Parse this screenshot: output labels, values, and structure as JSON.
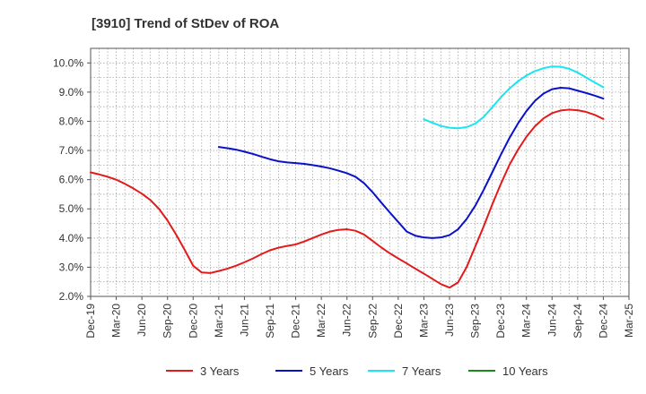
{
  "chart_data": {
    "type": "line",
    "title": "[3910]  Trend of StDev of ROA",
    "xlabel": "",
    "ylabel": "",
    "x_tick_labels": [
      "Dec-19",
      "Mar-20",
      "Jun-20",
      "Sep-20",
      "Dec-20",
      "Mar-21",
      "Jun-21",
      "Sep-21",
      "Dec-21",
      "Mar-22",
      "Jun-22",
      "Sep-22",
      "Dec-22",
      "Mar-23",
      "Jun-23",
      "Sep-23",
      "Dec-23",
      "Mar-24",
      "Jun-24",
      "Sep-24",
      "Dec-24",
      "Mar-25"
    ],
    "y_tick_labels": [
      "2.0%",
      "3.0%",
      "4.0%",
      "5.0%",
      "6.0%",
      "7.0%",
      "8.0%",
      "9.0%",
      "10.0%"
    ],
    "ylim": [
      2.0,
      10.5
    ],
    "grid": true,
    "legend_position": "bottom",
    "series": [
      {
        "name": "3 Years",
        "color": "#e31a1c",
        "points": [
          [
            "Dec-19",
            6.25
          ],
          [
            "Jan-20",
            6.18
          ],
          [
            "Feb-20",
            6.1
          ],
          [
            "Mar-20",
            6.0
          ],
          [
            "Apr-20",
            5.86
          ],
          [
            "May-20",
            5.7
          ],
          [
            "Jun-20",
            5.52
          ],
          [
            "Jul-20",
            5.3
          ],
          [
            "Aug-20",
            5.0
          ],
          [
            "Sep-20",
            4.6
          ],
          [
            "Oct-20",
            4.12
          ],
          [
            "Nov-20",
            3.6
          ],
          [
            "Dec-20",
            3.05
          ],
          [
            "Jan-21",
            2.82
          ],
          [
            "Feb-21",
            2.8
          ],
          [
            "Mar-21",
            2.87
          ],
          [
            "Apr-21",
            2.95
          ],
          [
            "May-21",
            3.05
          ],
          [
            "Jun-21",
            3.17
          ],
          [
            "Jul-21",
            3.3
          ],
          [
            "Aug-21",
            3.45
          ],
          [
            "Sep-21",
            3.58
          ],
          [
            "Oct-21",
            3.67
          ],
          [
            "Nov-21",
            3.73
          ],
          [
            "Dec-21",
            3.78
          ],
          [
            "Jan-22",
            3.88
          ],
          [
            "Feb-22",
            4.0
          ],
          [
            "Mar-22",
            4.12
          ],
          [
            "Apr-22",
            4.22
          ],
          [
            "May-22",
            4.28
          ],
          [
            "Jun-22",
            4.3
          ],
          [
            "Jul-22",
            4.25
          ],
          [
            "Aug-22",
            4.12
          ],
          [
            "Sep-22",
            3.9
          ],
          [
            "Oct-22",
            3.68
          ],
          [
            "Nov-22",
            3.48
          ],
          [
            "Dec-22",
            3.3
          ],
          [
            "Jan-23",
            3.13
          ],
          [
            "Feb-23",
            2.95
          ],
          [
            "Mar-23",
            2.78
          ],
          [
            "Apr-23",
            2.6
          ],
          [
            "May-23",
            2.42
          ],
          [
            "Jun-23",
            2.3
          ],
          [
            "Jul-23",
            2.48
          ],
          [
            "Aug-23",
            3.0
          ],
          [
            "Sep-23",
            3.7
          ],
          [
            "Oct-23",
            4.4
          ],
          [
            "Nov-23",
            5.15
          ],
          [
            "Dec-23",
            5.85
          ],
          [
            "Jan-24",
            6.5
          ],
          [
            "Feb-24",
            7.02
          ],
          [
            "Mar-24",
            7.47
          ],
          [
            "Apr-24",
            7.83
          ],
          [
            "May-24",
            8.1
          ],
          [
            "Jun-24",
            8.28
          ],
          [
            "Jul-24",
            8.37
          ],
          [
            "Aug-24",
            8.4
          ],
          [
            "Sep-24",
            8.38
          ],
          [
            "Oct-24",
            8.32
          ],
          [
            "Nov-24",
            8.22
          ],
          [
            "Dec-24",
            8.08
          ]
        ]
      },
      {
        "name": "5 Years",
        "color": "#0a12c8",
        "points": [
          [
            "Mar-21",
            7.12
          ],
          [
            "Apr-21",
            7.08
          ],
          [
            "May-21",
            7.03
          ],
          [
            "Jun-21",
            6.96
          ],
          [
            "Jul-21",
            6.88
          ],
          [
            "Aug-21",
            6.79
          ],
          [
            "Sep-21",
            6.7
          ],
          [
            "Oct-21",
            6.63
          ],
          [
            "Nov-21",
            6.59
          ],
          [
            "Dec-21",
            6.57
          ],
          [
            "Jan-22",
            6.54
          ],
          [
            "Feb-22",
            6.5
          ],
          [
            "Mar-22",
            6.45
          ],
          [
            "Apr-22",
            6.39
          ],
          [
            "May-22",
            6.31
          ],
          [
            "Jun-22",
            6.22
          ],
          [
            "Jul-22",
            6.1
          ],
          [
            "Aug-22",
            5.88
          ],
          [
            "Sep-22",
            5.57
          ],
          [
            "Oct-22",
            5.22
          ],
          [
            "Nov-22",
            4.88
          ],
          [
            "Dec-22",
            4.55
          ],
          [
            "Jan-23",
            4.22
          ],
          [
            "Feb-23",
            4.08
          ],
          [
            "Mar-23",
            4.02
          ],
          [
            "Apr-23",
            4.0
          ],
          [
            "May-23",
            4.02
          ],
          [
            "Jun-23",
            4.1
          ],
          [
            "Jul-23",
            4.3
          ],
          [
            "Aug-23",
            4.65
          ],
          [
            "Sep-23",
            5.1
          ],
          [
            "Oct-23",
            5.65
          ],
          [
            "Nov-23",
            6.25
          ],
          [
            "Dec-23",
            6.85
          ],
          [
            "Jan-24",
            7.42
          ],
          [
            "Feb-24",
            7.92
          ],
          [
            "Mar-24",
            8.35
          ],
          [
            "Apr-24",
            8.7
          ],
          [
            "May-24",
            8.95
          ],
          [
            "Jun-24",
            9.1
          ],
          [
            "Jul-24",
            9.15
          ],
          [
            "Aug-24",
            9.13
          ],
          [
            "Sep-24",
            9.05
          ],
          [
            "Oct-24",
            8.97
          ],
          [
            "Nov-24",
            8.88
          ],
          [
            "Dec-24",
            8.78
          ]
        ]
      },
      {
        "name": "7 Years",
        "color": "#19e6f0",
        "points": [
          [
            "Mar-23",
            8.07
          ],
          [
            "Apr-23",
            7.95
          ],
          [
            "May-23",
            7.84
          ],
          [
            "Jun-23",
            7.78
          ],
          [
            "Jul-23",
            7.76
          ],
          [
            "Aug-23",
            7.8
          ],
          [
            "Sep-23",
            7.92
          ],
          [
            "Oct-23",
            8.15
          ],
          [
            "Nov-23",
            8.48
          ],
          [
            "Dec-23",
            8.82
          ],
          [
            "Jan-24",
            9.12
          ],
          [
            "Feb-24",
            9.37
          ],
          [
            "Mar-24",
            9.57
          ],
          [
            "Apr-24",
            9.72
          ],
          [
            "May-24",
            9.82
          ],
          [
            "Jun-24",
            9.88
          ],
          [
            "Jul-24",
            9.87
          ],
          [
            "Aug-24",
            9.8
          ],
          [
            "Sep-24",
            9.67
          ],
          [
            "Oct-24",
            9.5
          ],
          [
            "Nov-24",
            9.33
          ],
          [
            "Dec-24",
            9.17
          ]
        ]
      },
      {
        "name": "10 Years",
        "color": "#1a8a1a",
        "points": []
      }
    ]
  }
}
